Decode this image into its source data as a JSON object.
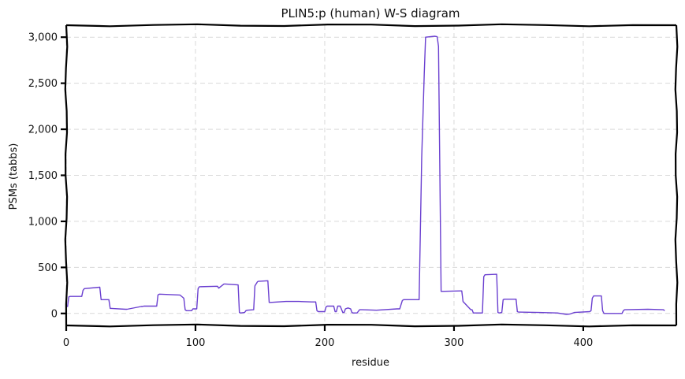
{
  "chart_data": {
    "type": "line",
    "title": "PLIN5:p (human) W-S diagram",
    "xlabel": "residue",
    "ylabel": "PSMs (tabbs)",
    "xlim": [
      0,
      472
    ],
    "ylim": [
      -130,
      3130
    ],
    "xticks": [
      0,
      100,
      200,
      300,
      400
    ],
    "xtick_labels": [
      "0",
      "100",
      "200",
      "300",
      "400"
    ],
    "yticks": [
      0,
      500,
      1000,
      1500,
      2000,
      2500,
      3000
    ],
    "ytick_labels": [
      "0",
      "500",
      "1,000",
      "1,500",
      "2,000",
      "2,500",
      "3,000"
    ],
    "grid": true,
    "colors": {
      "line": "#6a3fd0",
      "grid": "#d9d9d9",
      "axis": "#000000"
    },
    "series": [
      {
        "x": [
          1,
          2,
          3,
          12,
          13,
          14,
          26,
          27,
          28,
          33,
          34,
          35,
          46,
          47,
          58,
          59,
          60,
          70,
          71,
          72,
          88,
          91,
          92,
          93,
          97,
          98,
          101,
          102,
          103,
          117,
          118,
          122,
          123,
          133,
          134,
          135,
          138,
          139,
          140,
          145,
          146,
          148,
          149,
          150,
          156,
          157,
          158,
          170,
          180,
          190,
          193,
          194,
          195,
          200,
          201,
          202,
          207,
          208,
          209,
          210,
          212,
          214,
          215,
          216,
          218,
          220,
          221,
          222,
          225,
          227,
          228,
          229,
          240,
          256,
          258,
          260,
          261,
          262,
          272,
          273,
          275,
          277,
          278,
          285,
          287,
          288,
          290,
          305,
          306,
          307,
          313,
          314,
          315,
          322,
          323,
          324,
          333,
          334,
          335,
          337,
          338,
          339,
          348,
          349,
          350,
          366,
          380,
          387,
          390,
          393,
          405,
          406,
          407,
          408,
          414,
          415,
          416,
          430,
          431,
          432,
          450,
          462,
          463
        ],
        "y": [
          70,
          180,
          185,
          185,
          250,
          270,
          285,
          150,
          150,
          150,
          55,
          55,
          45,
          45,
          75,
          75,
          80,
          80,
          200,
          210,
          200,
          165,
          40,
          30,
          30,
          50,
          50,
          270,
          290,
          295,
          275,
          320,
          320,
          310,
          10,
          5,
          10,
          30,
          35,
          40,
          300,
          345,
          350,
          350,
          355,
          120,
          120,
          130,
          130,
          125,
          125,
          30,
          20,
          20,
          70,
          80,
          80,
          20,
          20,
          80,
          80,
          10,
          10,
          50,
          60,
          50,
          10,
          5,
          5,
          40,
          40,
          40,
          35,
          50,
          50,
          140,
          150,
          150,
          150,
          150,
          1700,
          2600,
          3000,
          3010,
          3005,
          2900,
          240,
          245,
          245,
          130,
          40,
          40,
          5,
          5,
          400,
          420,
          425,
          10,
          5,
          10,
          150,
          155,
          155,
          20,
          15,
          10,
          5,
          -10,
          -5,
          10,
          20,
          30,
          165,
          190,
          190,
          30,
          0,
          0,
          30,
          40,
          45,
          40,
          30
        ]
      }
    ]
  }
}
